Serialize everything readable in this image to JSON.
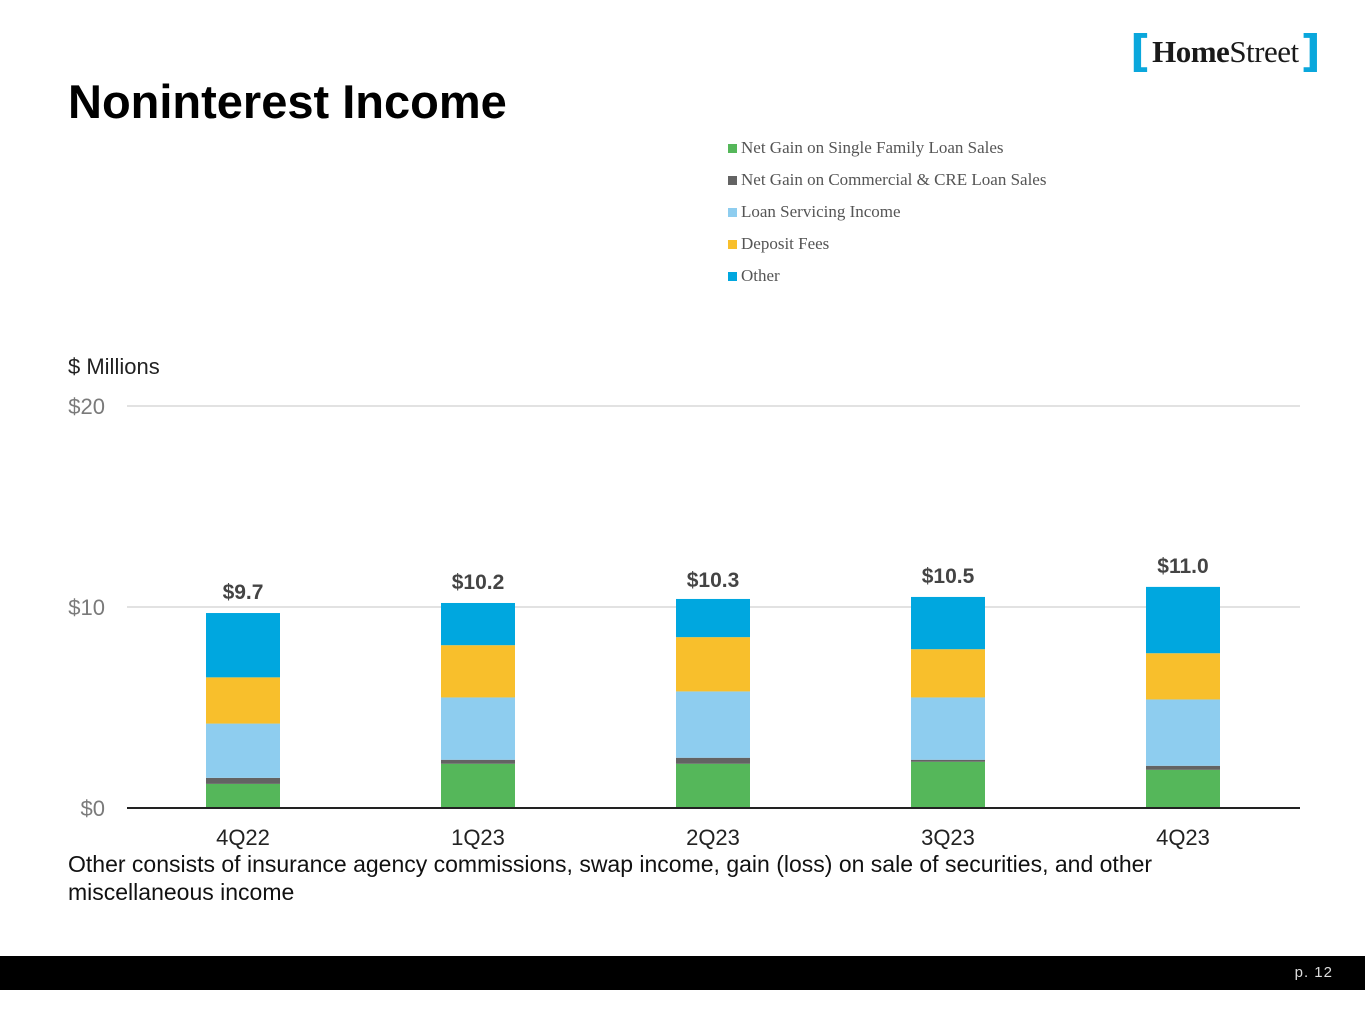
{
  "logo": {
    "text_bold": "Home",
    "text_regular": "Street"
  },
  "title": "Noninterest Income",
  "units_label": "$ Millions",
  "footnote": "Other consists of insurance agency commissions, swap income, gain (loss) on sale of securities, and other miscellaneous income",
  "page_number": "p. 12",
  "chart_data": {
    "type": "bar",
    "stacked": true,
    "title": "Noninterest Income",
    "ylabel": "$ Millions",
    "xlabel": "",
    "ylim": [
      0,
      20
    ],
    "yticks": [
      0,
      10,
      20
    ],
    "ytick_labels": [
      "$0",
      "$10",
      "$20"
    ],
    "legend_position": "top-right",
    "categories": [
      "4Q22",
      "1Q23",
      "2Q23",
      "3Q23",
      "4Q23"
    ],
    "totals": [
      9.7,
      10.2,
      10.3,
      10.5,
      11.0
    ],
    "total_labels": [
      "$9.7",
      "$10.2",
      "$10.3",
      "$10.5",
      "$11.0"
    ],
    "series": [
      {
        "name": "Net Gain on Single Family Loan Sales",
        "color": "#55b75a",
        "values": [
          1.2,
          2.2,
          2.2,
          2.3,
          1.9
        ]
      },
      {
        "name": "Net Gain on Commercial & CRE Loan Sales",
        "color": "#636363",
        "values": [
          0.3,
          0.2,
          0.3,
          0.1,
          0.2
        ]
      },
      {
        "name": "Loan Servicing Income",
        "color": "#8ecdef",
        "values": [
          2.7,
          3.1,
          3.3,
          3.1,
          3.3
        ]
      },
      {
        "name": "Deposit Fees",
        "color": "#f8bf2c",
        "values": [
          2.3,
          2.6,
          2.7,
          2.4,
          2.3
        ]
      },
      {
        "name": "Other",
        "color": "#00a7df",
        "values": [
          3.2,
          2.1,
          1.9,
          2.6,
          3.3
        ]
      }
    ]
  }
}
